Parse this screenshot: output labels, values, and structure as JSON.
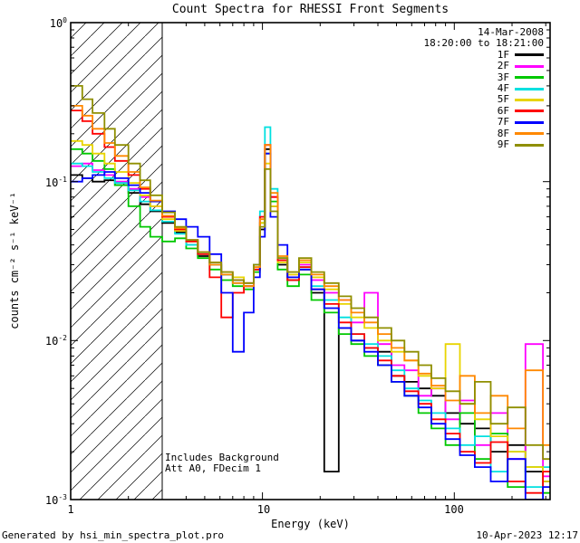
{
  "title": "Count Spectra for RHESSI Front Segments",
  "legend": {
    "date": "14-Mar-2008",
    "time": "18:20:00 to 18:21:00"
  },
  "annotations": {
    "line1": "Includes Background",
    "line2": "Att A0, FDecim 1"
  },
  "footer": {
    "left": "Generated by hsi_min_spectra_plot.pro",
    "right": "10-Apr-2023 12:17"
  },
  "chart_data": {
    "type": "line",
    "step": true,
    "title": "Count Spectra for RHESSI Front Segments",
    "xlabel": "Energy (keV)",
    "ylabel": "counts cm⁻² s⁻¹ keV⁻¹",
    "xlog": true,
    "ylog": true,
    "xlim": [
      1,
      316
    ],
    "ylim": [
      0.001,
      1
    ],
    "x_ticks": [
      1,
      10,
      100
    ],
    "y_tick_base": "10",
    "y_tick_exponents": [
      0,
      -1,
      -2,
      -3
    ],
    "hatch_region": {
      "xmin": 1,
      "xmax": 3
    },
    "x": [
      1.0,
      1.15,
      1.3,
      1.5,
      1.7,
      2.0,
      2.3,
      2.6,
      3.0,
      3.5,
      4.0,
      4.6,
      5.3,
      6.1,
      7.0,
      8.0,
      9.0,
      9.7,
      10.3,
      11.0,
      12.0,
      13.5,
      15.5,
      18,
      21,
      25,
      29,
      34,
      40,
      47,
      55,
      65,
      76,
      90,
      107,
      128,
      155,
      190,
      235,
      290
    ],
    "series": [
      {
        "name": "1F",
        "color": "#000000",
        "values": [
          0.11,
          0.105,
          0.1,
          0.102,
          0.095,
          0.085,
          0.072,
          0.065,
          0.055,
          0.048,
          0.04,
          0.034,
          0.03,
          0.026,
          0.024,
          0.022,
          0.028,
          0.05,
          0.16,
          0.07,
          0.03,
          0.024,
          0.028,
          0.02,
          0.0015,
          0.012,
          0.01,
          0.009,
          0.0085,
          0.006,
          0.0055,
          0.005,
          0.0045,
          0.0035,
          0.003,
          0.0028,
          0.002,
          0.0022,
          0.0015,
          0.0013
        ]
      },
      {
        "name": "2F",
        "color": "#ff00ff",
        "values": [
          0.125,
          0.13,
          0.118,
          0.11,
          0.1,
          0.09,
          0.08,
          0.07,
          0.06,
          0.05,
          0.043,
          0.036,
          0.031,
          0.027,
          0.024,
          0.023,
          0.03,
          0.06,
          0.17,
          0.08,
          0.032,
          0.026,
          0.03,
          0.024,
          0.02,
          0.018,
          0.013,
          0.02,
          0.0095,
          0.007,
          0.0065,
          0.0045,
          0.005,
          0.0032,
          0.0042,
          0.0022,
          0.0035,
          0.0018,
          0.0095,
          0.0014
        ]
      },
      {
        "name": "3F",
        "color": "#00c800",
        "values": [
          0.16,
          0.15,
          0.135,
          0.12,
          0.095,
          0.07,
          0.052,
          0.045,
          0.042,
          0.044,
          0.038,
          0.033,
          0.028,
          0.024,
          0.022,
          0.021,
          0.027,
          0.055,
          0.15,
          0.075,
          0.028,
          0.022,
          0.026,
          0.018,
          0.015,
          0.011,
          0.0095,
          0.008,
          0.007,
          0.0055,
          0.0045,
          0.0035,
          0.0028,
          0.0022,
          0.0035,
          0.0018,
          0.0026,
          0.0012,
          0.0016,
          0.0011
        ]
      },
      {
        "name": "4F",
        "color": "#00e0e0",
        "values": [
          0.13,
          0.125,
          0.115,
          0.105,
          0.098,
          0.088,
          0.075,
          0.066,
          0.056,
          0.047,
          0.04,
          0.035,
          0.03,
          0.026,
          0.023,
          0.022,
          0.03,
          0.065,
          0.22,
          0.09,
          0.033,
          0.025,
          0.029,
          0.022,
          0.018,
          0.014,
          0.011,
          0.0095,
          0.008,
          0.0065,
          0.005,
          0.0042,
          0.0035,
          0.0028,
          0.0022,
          0.0025,
          0.0015,
          0.002,
          0.0012,
          0.0016
        ]
      },
      {
        "name": "5F",
        "color": "#e8d400",
        "values": [
          0.18,
          0.17,
          0.15,
          0.13,
          0.115,
          0.098,
          0.082,
          0.07,
          0.058,
          0.049,
          0.042,
          0.036,
          0.031,
          0.027,
          0.025,
          0.023,
          0.029,
          0.055,
          0.13,
          0.07,
          0.031,
          0.026,
          0.031,
          0.025,
          0.021,
          0.017,
          0.014,
          0.012,
          0.01,
          0.0085,
          0.0075,
          0.006,
          0.005,
          0.0095,
          0.004,
          0.0032,
          0.0025,
          0.002,
          0.0016,
          0.0013
        ]
      },
      {
        "name": "6F",
        "color": "#ff0000",
        "values": [
          0.28,
          0.24,
          0.2,
          0.165,
          0.135,
          0.11,
          0.09,
          0.075,
          0.06,
          0.05,
          0.042,
          0.035,
          0.025,
          0.014,
          0.02,
          0.022,
          0.028,
          0.06,
          0.17,
          0.08,
          0.032,
          0.024,
          0.029,
          0.021,
          0.017,
          0.013,
          0.011,
          0.009,
          0.0075,
          0.006,
          0.0048,
          0.004,
          0.0032,
          0.0026,
          0.002,
          0.0017,
          0.0023,
          0.0013,
          0.0011,
          0.0015
        ]
      },
      {
        "name": "7F",
        "color": "#0000ff",
        "values": [
          0.1,
          0.105,
          0.11,
          0.115,
          0.105,
          0.095,
          0.085,
          0.075,
          0.065,
          0.058,
          0.052,
          0.045,
          0.035,
          0.02,
          0.0085,
          0.015,
          0.025,
          0.045,
          0.15,
          0.06,
          0.04,
          0.025,
          0.028,
          0.021,
          0.016,
          0.012,
          0.01,
          0.0085,
          0.007,
          0.0055,
          0.0045,
          0.0038,
          0.003,
          0.0024,
          0.0019,
          0.0016,
          0.0013,
          0.0018,
          0.001,
          0.0012
        ]
      },
      {
        "name": "8F",
        "color": "#ff8800",
        "values": [
          0.3,
          0.26,
          0.215,
          0.175,
          0.145,
          0.115,
          0.092,
          0.076,
          0.061,
          0.051,
          0.043,
          0.036,
          0.03,
          0.026,
          0.023,
          0.022,
          0.029,
          0.058,
          0.17,
          0.085,
          0.034,
          0.027,
          0.032,
          0.026,
          0.022,
          0.018,
          0.015,
          0.013,
          0.011,
          0.009,
          0.0075,
          0.0062,
          0.0052,
          0.0042,
          0.006,
          0.0035,
          0.0045,
          0.0028,
          0.0065,
          0.0022
        ]
      },
      {
        "name": "9F",
        "color": "#8f8f00",
        "values": [
          0.4,
          0.33,
          0.27,
          0.215,
          0.17,
          0.13,
          0.102,
          0.082,
          0.064,
          0.052,
          0.043,
          0.036,
          0.031,
          0.027,
          0.024,
          0.023,
          0.03,
          0.052,
          0.12,
          0.065,
          0.033,
          0.027,
          0.033,
          0.027,
          0.023,
          0.019,
          0.016,
          0.014,
          0.012,
          0.01,
          0.0085,
          0.007,
          0.0058,
          0.0048,
          0.004,
          0.0055,
          0.003,
          0.0038,
          0.0022,
          0.0018
        ]
      }
    ]
  }
}
